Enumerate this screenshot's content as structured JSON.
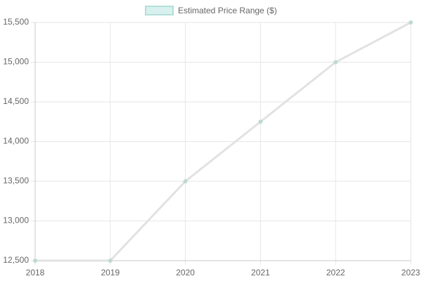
{
  "chart_data": {
    "type": "line",
    "categories": [
      "2018",
      "2019",
      "2020",
      "2021",
      "2022",
      "2023"
    ],
    "series": [
      {
        "name": "Estimated Price Range ($)",
        "color": "#e2e2e2",
        "point_color": "#bcdad6",
        "legend_fill": "#d8f1ee",
        "legend_border": "#b2dfd9",
        "values": [
          12500,
          12500,
          13500,
          14250,
          15000,
          15500
        ]
      }
    ],
    "ylim": [
      12500,
      15500
    ],
    "yticks": [
      {
        "value": 12500,
        "label": "12,500"
      },
      {
        "value": 13000,
        "label": "13,000"
      },
      {
        "value": 13500,
        "label": "13,500"
      },
      {
        "value": 14000,
        "label": "14,000"
      },
      {
        "value": 14500,
        "label": "14,500"
      },
      {
        "value": 15000,
        "label": "15,000"
      },
      {
        "value": 15500,
        "label": "15,500"
      }
    ],
    "grid": true,
    "legend": "top"
  }
}
